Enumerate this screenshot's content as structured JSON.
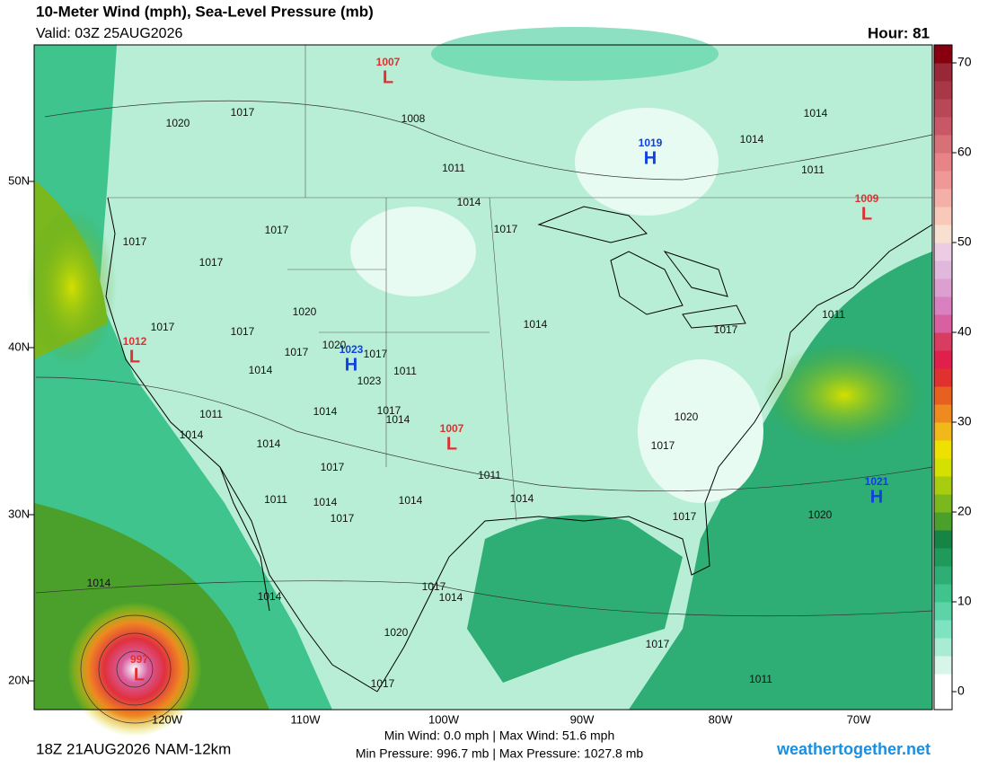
{
  "header": {
    "title": "10-Meter Wind (mph), Sea-Level Pressure (mb)",
    "valid": "Valid: 03Z 25AUG2026",
    "hour": "Hour: 81"
  },
  "map": {
    "lat_labels": [
      "50N",
      "40N",
      "30N",
      "20N"
    ],
    "lon_labels": [
      "120W",
      "110W",
      "100W",
      "90W",
      "80W",
      "70W"
    ],
    "pressure_centers": [
      {
        "kind": "L",
        "value": "1007"
      },
      {
        "kind": "H",
        "value": "1019"
      },
      {
        "kind": "L",
        "value": "1009"
      },
      {
        "kind": "L",
        "value": "1012"
      },
      {
        "kind": "H",
        "value": "1023"
      },
      {
        "kind": "L",
        "value": "1007"
      },
      {
        "kind": "H",
        "value": "1021"
      },
      {
        "kind": "L",
        "value": "997"
      }
    ],
    "isobar_labels": [
      "1020",
      "1017",
      "1008",
      "1011",
      "1014",
      "1017",
      "1017",
      "1017",
      "1017",
      "1020",
      "1017",
      "1017",
      "1017",
      "1020",
      "1017",
      "1014",
      "1011",
      "1023",
      "1011",
      "1014",
      "1017",
      "1014",
      "1014",
      "1014",
      "1017",
      "1011",
      "1011",
      "1014",
      "1017",
      "1014",
      "1014",
      "1014",
      "1017",
      "1020",
      "1017",
      "1017",
      "1020",
      "1014",
      "1014",
      "1011",
      "1011",
      "1014",
      "1014",
      "1017",
      "1014",
      "1020",
      "1017",
      "1017",
      "1011"
    ]
  },
  "colorbar": {
    "lim": [
      -2,
      72
    ],
    "ticks": [
      0,
      10,
      20,
      30,
      40,
      50,
      60,
      70
    ],
    "colors": [
      "#ffffff",
      "#ffffff",
      "#d8f5ea",
      "#a8ecd4",
      "#7de3c0",
      "#5cd4a8",
      "#3fc48e",
      "#2eae74",
      "#1f9a5a",
      "#168445",
      "#4aa02a",
      "#7ab81e",
      "#a8cc10",
      "#d4e000",
      "#eee000",
      "#f0b818",
      "#ee8a20",
      "#e86020",
      "#e03030",
      "#e0204a",
      "#d83c60",
      "#d860a0",
      "#d880c0",
      "#dca0d0",
      "#e0b8dc",
      "#eccce4",
      "#f8e0d0",
      "#f8c8b8",
      "#f4b0a8",
      "#f09898",
      "#e88488",
      "#d87078",
      "#c85868",
      "#b84858",
      "#a83848",
      "#982838",
      "#880010"
    ]
  },
  "footer": {
    "run": "18Z 21AUG2026 NAM-12km",
    "wind": "Min Wind:  0.0 mph | Max Wind: 51.6 mph",
    "pressure": "Min Pressure: 996.7 mb | Max Pressure: 1027.8 mb",
    "site": "weathertogether.net"
  }
}
